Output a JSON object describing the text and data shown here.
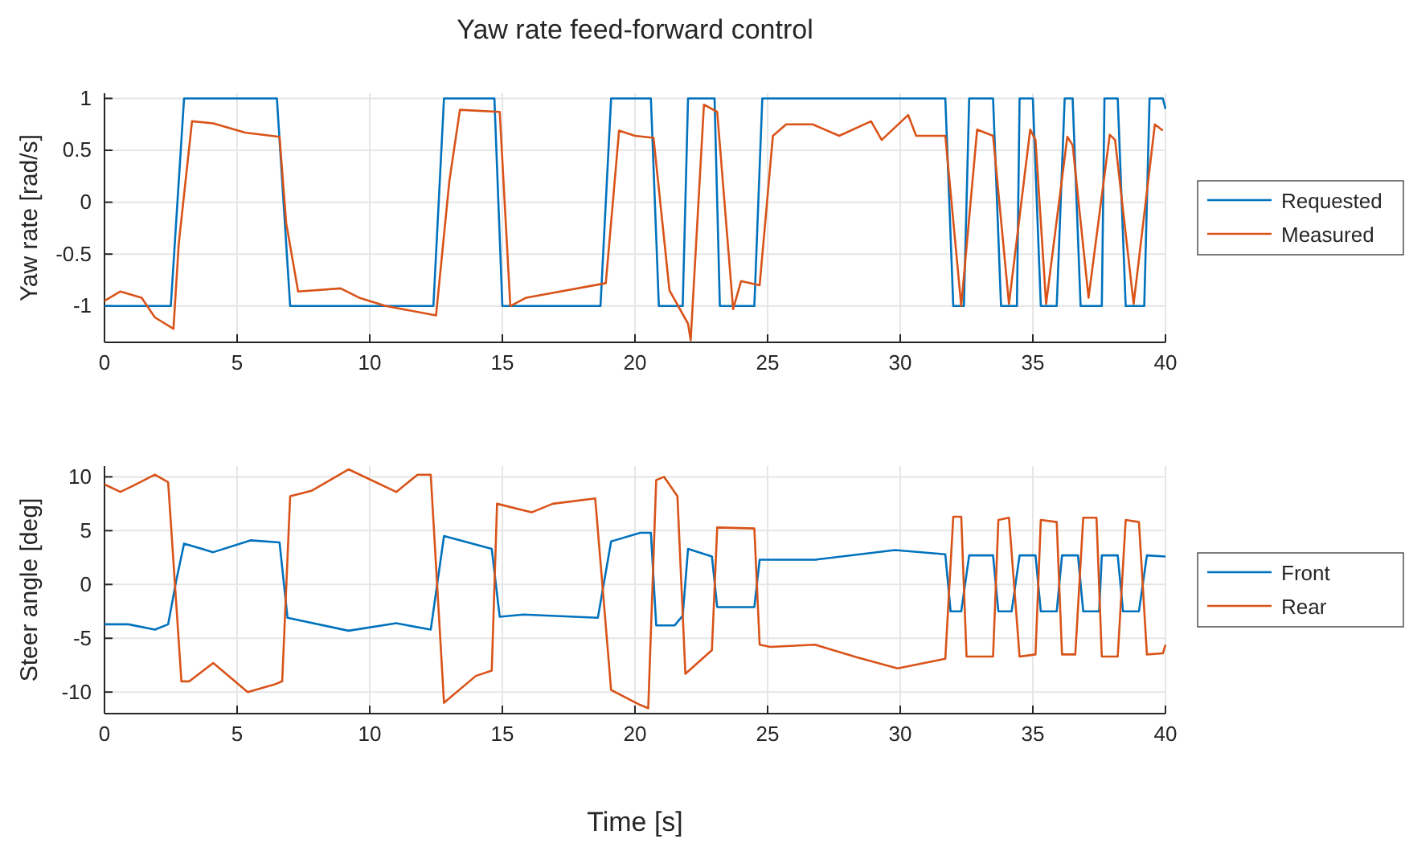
{
  "chart_data": [
    {
      "type": "line",
      "title": "Yaw rate feed-forward control",
      "ylabel": "Yaw rate [rad/s]",
      "xlim": [
        0,
        40
      ],
      "ylim": [
        -1.35,
        1.05
      ],
      "xticks": [
        0,
        5,
        10,
        15,
        20,
        25,
        30,
        35,
        40
      ],
      "yticks": [
        -1,
        -0.5,
        0,
        0.5,
        1
      ],
      "grid": true,
      "legend": "right",
      "line_style": "solid",
      "series": [
        {
          "name": "Requested",
          "color": "#0072bd",
          "x": [
            0,
            2.5,
            3.0,
            6.5,
            7.0,
            12.4,
            12.8,
            14.7,
            15.0,
            18.7,
            19.1,
            20.6,
            20.9,
            21.8,
            22.0,
            23.0,
            23.2,
            24.5,
            24.8,
            31.7,
            32.0,
            32.4,
            32.6,
            33.5,
            33.8,
            34.4,
            34.5,
            35.0,
            35.3,
            35.9,
            36.2,
            36.5,
            36.8,
            37.6,
            37.7,
            38.2,
            38.5,
            39.2,
            39.4,
            39.9,
            40
          ],
          "values": [
            -1,
            -1,
            1,
            1,
            -1,
            -1,
            1,
            1,
            -1,
            -1,
            1,
            1,
            -1,
            -1,
            1,
            1,
            -1,
            -1,
            1,
            1,
            -1,
            -1,
            1,
            1,
            -1,
            -1,
            1,
            1,
            -1,
            -1,
            1,
            1,
            -1,
            -1,
            1,
            1,
            -1,
            -1,
            1,
            1,
            0.9
          ]
        },
        {
          "name": "Measured",
          "color": "#d95319",
          "x": [
            0,
            0.6,
            1.4,
            1.9,
            2.6,
            2.8,
            3.3,
            4.1,
            5.3,
            6.6,
            6.85,
            7.3,
            8.9,
            9.6,
            10.6,
            12.5,
            13.0,
            13.4,
            14.9,
            15.3,
            15.9,
            18.9,
            19.2,
            19.4,
            20.0,
            20.7,
            21.3,
            22.0,
            22.1,
            22.6,
            23.1,
            23.7,
            24.0,
            24.7,
            25.2,
            25.7,
            26.7,
            27.7,
            28.9,
            29.3,
            30.3,
            30.6,
            31.7,
            32.3,
            32.9,
            33.5,
            34.1,
            34.9,
            35.1,
            35.5,
            36.3,
            36.5,
            37.1,
            37.9,
            38.1,
            38.8,
            39.6,
            39.9
          ],
          "values": [
            -0.95,
            -0.86,
            -0.92,
            -1.11,
            -1.22,
            -0.4,
            0.78,
            0.76,
            0.67,
            0.63,
            -0.2,
            -0.86,
            -0.83,
            -0.92,
            -1.0,
            -1.09,
            0.2,
            0.89,
            0.87,
            -1.0,
            -0.92,
            -0.78,
            0.1,
            0.69,
            0.64,
            0.62,
            -0.85,
            -1.17,
            -1.33,
            0.94,
            0.87,
            -1.03,
            -0.76,
            -0.8,
            0.64,
            0.75,
            0.75,
            0.64,
            0.78,
            0.6,
            0.84,
            0.64,
            0.64,
            -1.0,
            0.7,
            0.64,
            -0.98,
            0.7,
            0.6,
            -0.98,
            0.63,
            0.55,
            -0.92,
            0.65,
            0.6,
            -0.98,
            0.75,
            0.69
          ]
        }
      ]
    },
    {
      "type": "line",
      "ylabel": "Steer angle [deg]",
      "xlabel": "Time [s]",
      "xlim": [
        0,
        40
      ],
      "ylim": [
        -12,
        11
      ],
      "xticks": [
        0,
        5,
        10,
        15,
        20,
        25,
        30,
        35,
        40
      ],
      "yticks": [
        -10,
        -5,
        0,
        5,
        10
      ],
      "grid": true,
      "legend": "right",
      "line_style": "solid",
      "series": [
        {
          "name": "Front",
          "color": "#0072bd",
          "x": [
            0,
            0.9,
            1.9,
            2.4,
            2.7,
            3.0,
            4.1,
            5.5,
            6.6,
            6.9,
            9.2,
            11.0,
            12.3,
            12.8,
            14.6,
            14.9,
            15.8,
            18.6,
            19.1,
            20.2,
            20.6,
            20.8,
            21.5,
            21.8,
            22.0,
            22.9,
            23.1,
            24.5,
            24.7,
            26.8,
            29.8,
            31.7,
            31.9,
            32.3,
            32.6,
            33.5,
            33.7,
            34.2,
            34.5,
            35.1,
            35.3,
            35.9,
            36.1,
            36.7,
            36.9,
            37.5,
            37.6,
            38.2,
            38.4,
            39.0,
            39.3,
            40
          ],
          "values": [
            -3.7,
            -3.7,
            -4.2,
            -3.7,
            0.3,
            3.8,
            3.0,
            4.1,
            3.9,
            -3.1,
            -4.3,
            -3.6,
            -4.2,
            4.5,
            3.3,
            -3.0,
            -2.8,
            -3.1,
            4.0,
            4.8,
            4.8,
            -3.8,
            -3.8,
            -2.9,
            3.3,
            2.6,
            -2.1,
            -2.1,
            2.3,
            2.3,
            3.2,
            2.8,
            -2.5,
            -2.5,
            2.7,
            2.7,
            -2.5,
            -2.5,
            2.7,
            2.7,
            -2.5,
            -2.5,
            2.7,
            2.7,
            -2.5,
            -2.5,
            2.7,
            2.7,
            -2.5,
            -2.5,
            2.7,
            2.6
          ]
        },
        {
          "name": "Rear",
          "color": "#d95319",
          "x": [
            0,
            0.6,
            1.1,
            1.9,
            2.4,
            2.9,
            3.2,
            4.1,
            5.4,
            6.4,
            6.7,
            7.0,
            7.8,
            9.2,
            11.0,
            11.8,
            12.3,
            12.8,
            14.0,
            14.6,
            14.8,
            16.1,
            16.9,
            18.5,
            19.1,
            20.2,
            20.5,
            20.8,
            21.1,
            21.6,
            21.9,
            22.9,
            23.1,
            24.5,
            24.7,
            25.1,
            26.8,
            28.4,
            29.9,
            31.7,
            32.0,
            32.3,
            32.5,
            33.5,
            33.7,
            34.1,
            34.5,
            35.1,
            35.3,
            35.9,
            36.1,
            36.6,
            36.9,
            37.4,
            37.6,
            38.2,
            38.5,
            39.0,
            39.3,
            39.9,
            40
          ],
          "values": [
            9.3,
            8.6,
            9.2,
            10.2,
            9.5,
            -9.0,
            -9.0,
            -7.3,
            -10.0,
            -9.3,
            -9.0,
            8.2,
            8.7,
            10.7,
            8.6,
            10.2,
            10.2,
            -11.0,
            -8.5,
            -8.0,
            7.5,
            6.7,
            7.5,
            8.0,
            -9.8,
            -11.2,
            -11.5,
            9.7,
            10.0,
            8.2,
            -8.3,
            -6.1,
            5.3,
            5.2,
            -5.6,
            -5.8,
            -5.6,
            -6.8,
            -7.8,
            -6.9,
            6.3,
            6.3,
            -6.7,
            -6.7,
            6.0,
            6.2,
            -6.7,
            -6.5,
            6.0,
            5.8,
            -6.5,
            -6.5,
            6.2,
            6.2,
            -6.7,
            -6.7,
            6.0,
            5.8,
            -6.5,
            -6.4,
            -5.6
          ]
        }
      ]
    }
  ]
}
